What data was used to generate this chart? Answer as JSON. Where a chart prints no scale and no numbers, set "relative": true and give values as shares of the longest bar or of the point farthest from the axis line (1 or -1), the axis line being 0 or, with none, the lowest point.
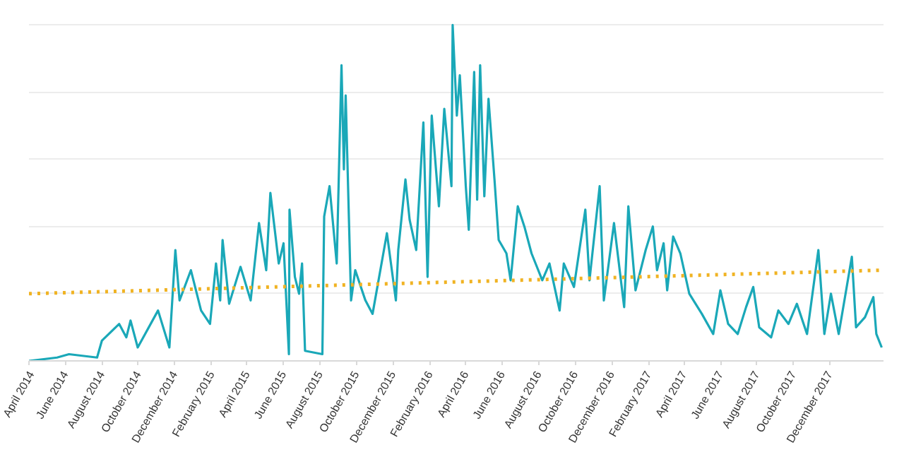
{
  "chart_data": {
    "type": "line",
    "relative": true,
    "grid": "y",
    "xlim": [
      "2014-04-01",
      "2018-03-01"
    ],
    "xticks": [
      {
        "value": "2014-04-01",
        "label": "April 2014"
      },
      {
        "value": "2014-06-01",
        "label": "June 2014"
      },
      {
        "value": "2014-08-01",
        "label": "August 2014"
      },
      {
        "value": "2014-10-01",
        "label": "October 2014"
      },
      {
        "value": "2014-12-01",
        "label": "December 2014"
      },
      {
        "value": "2015-02-01",
        "label": "February 2015"
      },
      {
        "value": "2015-04-01",
        "label": "April 2015"
      },
      {
        "value": "2015-06-01",
        "label": "June 2015"
      },
      {
        "value": "2015-08-01",
        "label": "August 2015"
      },
      {
        "value": "2015-10-01",
        "label": "October 2015"
      },
      {
        "value": "2015-12-01",
        "label": "December 2015"
      },
      {
        "value": "2016-02-01",
        "label": "February 2016"
      },
      {
        "value": "2016-04-01",
        "label": "April 2016"
      },
      {
        "value": "2016-06-01",
        "label": "June 2016"
      },
      {
        "value": "2016-08-01",
        "label": "August 2016"
      },
      {
        "value": "2016-10-01",
        "label": "October 2016"
      },
      {
        "value": "2016-12-01",
        "label": "December 2016"
      },
      {
        "value": "2017-02-01",
        "label": "February 2017"
      },
      {
        "value": "2017-04-01",
        "label": "April 2017"
      },
      {
        "value": "2017-06-01",
        "label": "June 2017"
      },
      {
        "value": "2017-08-01",
        "label": "August 2017"
      },
      {
        "value": "2017-10-01",
        "label": "October 2017"
      },
      {
        "value": "2017-12-01",
        "label": "December 2017"
      }
    ],
    "series": [
      {
        "color": "#1aa8b8",
        "line_style": "solid",
        "x": [
          "2014-04-01",
          "2014-05-18",
          "2014-06-07",
          "2014-07-24",
          "2014-08-01",
          "2014-08-30",
          "2014-09-11",
          "2014-09-18",
          "2014-09-30",
          "2014-11-03",
          "2014-11-22",
          "2014-12-02",
          "2014-12-09",
          "2014-12-28",
          "2015-01-14",
          "2015-01-29",
          "2015-02-08",
          "2015-02-15",
          "2015-02-19",
          "2015-03-02",
          "2015-03-21",
          "2015-04-07",
          "2015-04-21",
          "2015-05-03",
          "2015-05-10",
          "2015-05-24",
          "2015-06-01",
          "2015-06-10",
          "2015-06-11",
          "2015-06-20",
          "2015-06-27",
          "2015-07-02",
          "2015-07-07",
          "2015-08-05",
          "2015-08-08",
          "2015-08-17",
          "2015-08-29",
          "2015-09-06",
          "2015-09-10",
          "2015-09-13",
          "2015-09-22",
          "2015-09-29",
          "2015-10-16",
          "2015-10-28",
          "2015-11-21",
          "2015-12-06",
          "2015-12-10",
          "2015-12-22",
          "2015-12-29",
          "2016-01-09",
          "2016-01-21",
          "2016-01-28",
          "2016-02-04",
          "2016-02-16",
          "2016-02-25",
          "2016-03-08",
          "2016-03-10",
          "2016-03-17",
          "2016-03-22",
          "2016-04-01",
          "2016-04-06",
          "2016-04-15",
          "2016-04-20",
          "2016-04-25",
          "2016-05-02",
          "2016-05-09",
          "2016-05-19",
          "2016-05-26",
          "2016-06-08",
          "2016-06-15",
          "2016-06-27",
          "2016-07-08",
          "2016-07-20",
          "2016-08-07",
          "2016-08-19",
          "2016-09-05",
          "2016-09-12",
          "2016-09-29",
          "2016-10-18",
          "2016-10-25",
          "2016-11-11",
          "2016-11-18",
          "2016-12-05",
          "2016-12-22",
          "2016-12-29",
          "2017-01-10",
          "2017-01-27",
          "2017-02-08",
          "2017-02-15",
          "2017-02-26",
          "2017-03-04",
          "2017-03-14",
          "2017-03-26",
          "2017-04-10",
          "2017-05-01",
          "2017-05-20",
          "2017-06-01",
          "2017-06-14",
          "2017-06-30",
          "2017-07-14",
          "2017-07-26",
          "2017-08-05",
          "2017-08-25",
          "2017-09-06",
          "2017-09-23",
          "2017-10-07",
          "2017-10-24",
          "2017-11-12",
          "2017-11-22",
          "2017-12-03",
          "2017-12-16",
          "2018-01-07",
          "2018-01-14",
          "2018-01-29",
          "2018-02-12",
          "2018-02-17",
          "2018-02-26"
        ],
        "values": [
          0,
          0.01,
          0.02,
          0.01,
          0.06,
          0.11,
          0.07,
          0.12,
          0.04,
          0.15,
          0.04,
          0.33,
          0.18,
          0.27,
          0.15,
          0.11,
          0.29,
          0.18,
          0.36,
          0.17,
          0.28,
          0.18,
          0.41,
          0.27,
          0.5,
          0.29,
          0.35,
          0.02,
          0.45,
          0.25,
          0.2,
          0.29,
          0.03,
          0.02,
          0.43,
          0.52,
          0.29,
          0.88,
          0.57,
          0.79,
          0.18,
          0.27,
          0.18,
          0.14,
          0.38,
          0.18,
          0.33,
          0.54,
          0.42,
          0.33,
          0.71,
          0.25,
          0.73,
          0.46,
          0.75,
          0.52,
          1.0,
          0.73,
          0.85,
          0.52,
          0.39,
          0.86,
          0.48,
          0.88,
          0.49,
          0.78,
          0.54,
          0.36,
          0.32,
          0.24,
          0.46,
          0.4,
          0.32,
          0.24,
          0.29,
          0.15,
          0.29,
          0.22,
          0.45,
          0.24,
          0.52,
          0.18,
          0.41,
          0.16,
          0.46,
          0.21,
          0.33,
          0.4,
          0.27,
          0.35,
          0.21,
          0.37,
          0.32,
          0.2,
          0.14,
          0.08,
          0.21,
          0.11,
          0.08,
          0.16,
          0.22,
          0.1,
          0.07,
          0.15,
          0.11,
          0.17,
          0.08,
          0.33,
          0.08,
          0.2,
          0.08,
          0.31,
          0.1,
          0.13,
          0.19,
          0.08,
          0.04
        ]
      },
      {
        "color": "#f0b323",
        "line_style": "dotted",
        "x": [
          "2014-04-01",
          "2018-02-26"
        ],
        "values": [
          0.2,
          0.27
        ]
      }
    ]
  }
}
